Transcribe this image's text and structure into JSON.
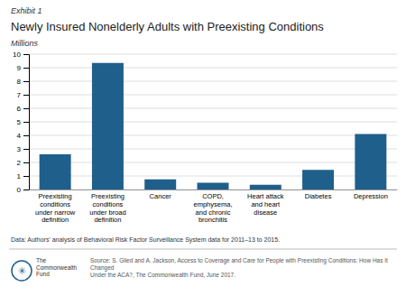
{
  "chart_data": {
    "type": "bar",
    "title": "Newly Insured Nonelderly Adults with Preexisting Conditions",
    "ylabel": "Millions",
    "categories": [
      "Preexisting\nconditions\nunder narrow\ndefinition",
      "Preexisting\nconditions\nunder broad\ndefinition",
      "Cancer",
      "COPD,\nemphysema,\nand chronic\nbronchitis",
      "Heart attack\nand heart\ndisease",
      "Diabetes",
      "Depression"
    ],
    "values": [
      2.6,
      9.35,
      0.75,
      0.5,
      0.35,
      1.45,
      4.1
    ],
    "color": "#1F5F8B",
    "ylim": [
      0,
      10
    ],
    "yticks": [
      0,
      1,
      2,
      3,
      4,
      5,
      6,
      7,
      8,
      9,
      10
    ],
    "grid": true,
    "annotations": [
      "Exhibit 1",
      "Data: Authors' analysis of Behavioral Risk Factor Surveillance System data for 2011–13 to 2015.",
      "The\nCommonwealth\nFund",
      "Source: S. Glied and A. Jackson, Access to Coverage and Care for People with Preexisting Conditions: How Has It Changed\nUnder the ACA?, The Commonwealth Fund, June 2017.",
      "✳"
    ]
  }
}
